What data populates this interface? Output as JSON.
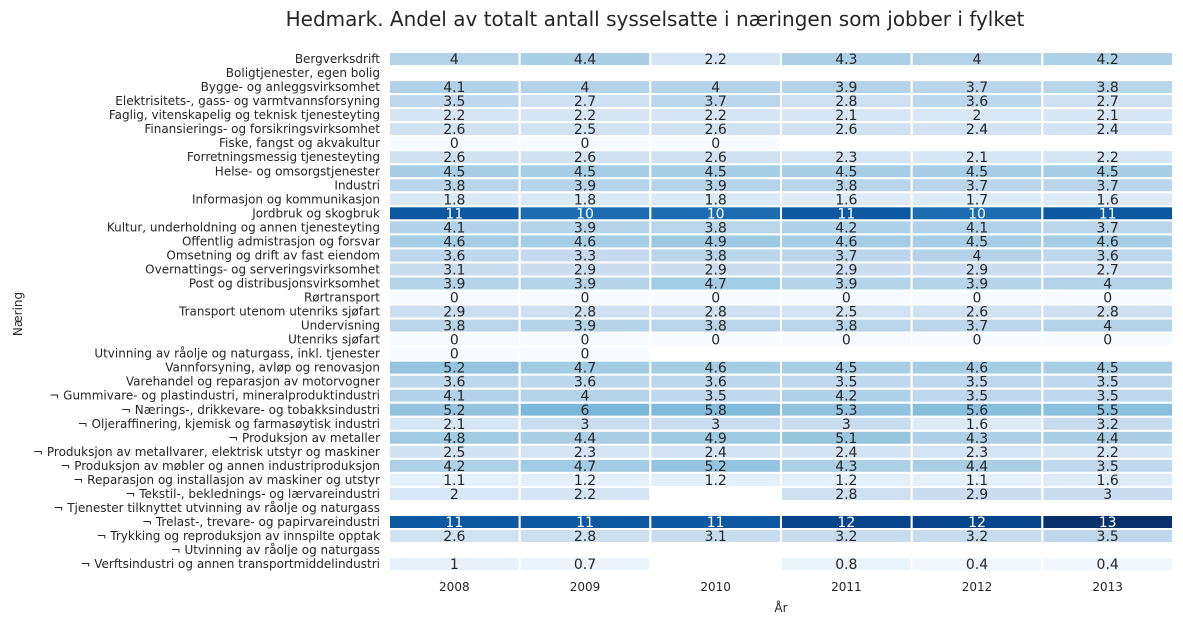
{
  "chart_data": {
    "type": "heatmap",
    "title": "Hedmark. Andel av totalt antall sysselsatte i næringen som jobber i fylket",
    "xlabel": "År",
    "ylabel": "Næring",
    "colormap": "Blues",
    "value_range": [
      0,
      13
    ],
    "x": [
      "2008",
      "2009",
      "2010",
      "2011",
      "2012",
      "2013"
    ],
    "rows": [
      "Bergverksdrift",
      "Boligtjenester, egen bolig",
      "Bygge- og anleggsvirksomhet",
      "Elektrisitets-, gass- og varmtvannsforsyning",
      "Faglig, vitenskapelig og teknisk tjenesteyting",
      "Finansierings- og forsikringsvirksomhet",
      "Fiske, fangst og akvakultur",
      "Forretningsmessig tjenesteyting",
      "Helse- og omsorgstjenester",
      "Industri",
      "Informasjon og kommunikasjon",
      "Jordbruk og skogbruk",
      "Kultur, underholdning og annen tjenesteyting",
      "Offentlig admistrasjon og forsvar",
      "Omsetning og drift av fast eiendom",
      "Overnattings- og serveringsvirksomhet",
      "Post og distribusjonsvirksomhet",
      "Rørtransport",
      "Transport utenom utenriks sjøfart",
      "Undervisning",
      "Utenriks sjøfart",
      "Utvinning av råolje og naturgass, inkl. tjenester",
      "Vannforsyning, avløp og renovasjon",
      "Varehandel og reparasjon av motorvogner",
      "¬ Gummivare- og plastindustri, mineralproduktindustri",
      "¬ Nærings-, drikkevare- og tobakksindustri",
      "¬ Oljeraffinering, kjemisk og farmasøytisk industri",
      "¬ Produksjon av metaller",
      "¬ Produksjon av metallvarer, elektrisk utstyr og maskiner",
      "¬ Produksjon av møbler og annen industriproduksjon",
      "¬ Reparasjon og installasjon av maskiner og utstyr",
      "¬ Tekstil-, beklednings- og lærvareindustri",
      "¬ Tjenester tilknyttet utvinning av råolje og naturgass",
      "¬ Trelast-, trevare- og papirvareindustri",
      "¬ Trykking og reproduksjon av innspilte opptak",
      "¬ Utvinning av råolje og naturgass",
      "¬ Verftsindustri og annen transportmiddelindustri"
    ],
    "values": [
      [
        4,
        4.4,
        2.2,
        4.3,
        4,
        4.2
      ],
      [
        null,
        null,
        null,
        null,
        null,
        null
      ],
      [
        4.1,
        4,
        4,
        3.9,
        3.7,
        3.8
      ],
      [
        3.5,
        2.7,
        3.7,
        2.8,
        3.6,
        2.7
      ],
      [
        2.2,
        2.2,
        2.2,
        2.1,
        2,
        2.1
      ],
      [
        2.6,
        2.5,
        2.6,
        2.6,
        2.4,
        2.4
      ],
      [
        0,
        0,
        0,
        null,
        null,
        null
      ],
      [
        2.6,
        2.6,
        2.6,
        2.3,
        2.1,
        2.2
      ],
      [
        4.5,
        4.5,
        4.5,
        4.5,
        4.5,
        4.5
      ],
      [
        3.8,
        3.9,
        3.9,
        3.8,
        3.7,
        3.7
      ],
      [
        1.8,
        1.8,
        1.8,
        1.6,
        1.7,
        1.6
      ],
      [
        11,
        10,
        10,
        11,
        10,
        11
      ],
      [
        4.1,
        3.9,
        3.8,
        4.2,
        4.1,
        3.7
      ],
      [
        4.6,
        4.6,
        4.9,
        4.6,
        4.5,
        4.6
      ],
      [
        3.6,
        3.3,
        3.8,
        3.7,
        4,
        3.6
      ],
      [
        3.1,
        2.9,
        2.9,
        2.9,
        2.9,
        2.7
      ],
      [
        3.9,
        3.9,
        4.7,
        3.9,
        3.9,
        4
      ],
      [
        0,
        0,
        0,
        0,
        0,
        0
      ],
      [
        2.9,
        2.8,
        2.8,
        2.5,
        2.6,
        2.8
      ],
      [
        3.8,
        3.9,
        3.8,
        3.8,
        3.7,
        4
      ],
      [
        0,
        0,
        0,
        0,
        0,
        0
      ],
      [
        0,
        0,
        null,
        null,
        null,
        null
      ],
      [
        5.2,
        4.7,
        4.6,
        4.5,
        4.6,
        4.5
      ],
      [
        3.6,
        3.6,
        3.6,
        3.5,
        3.5,
        3.5
      ],
      [
        4.1,
        4,
        3.5,
        4.2,
        3.5,
        3.5
      ],
      [
        5.2,
        6,
        5.8,
        5.3,
        5.6,
        5.5
      ],
      [
        2.1,
        3,
        3,
        3,
        1.6,
        3.2
      ],
      [
        4.8,
        4.4,
        4.9,
        5.1,
        4.3,
        4.4
      ],
      [
        2.5,
        2.3,
        2.4,
        2.4,
        2.3,
        2.2
      ],
      [
        4.2,
        4.7,
        5.2,
        4.3,
        4.4,
        3.5
      ],
      [
        1.1,
        1.2,
        1.2,
        1.2,
        1.1,
        1.6
      ],
      [
        2,
        2.2,
        null,
        2.8,
        2.9,
        3
      ],
      [
        null,
        null,
        null,
        null,
        null,
        null
      ],
      [
        11,
        11,
        11,
        12,
        12,
        13
      ],
      [
        2.6,
        2.8,
        3.1,
        3.2,
        3.2,
        3.5
      ],
      [
        null,
        null,
        null,
        null,
        null,
        null
      ],
      [
        1,
        0.7,
        null,
        0.8,
        0.4,
        0.4
      ]
    ]
  }
}
